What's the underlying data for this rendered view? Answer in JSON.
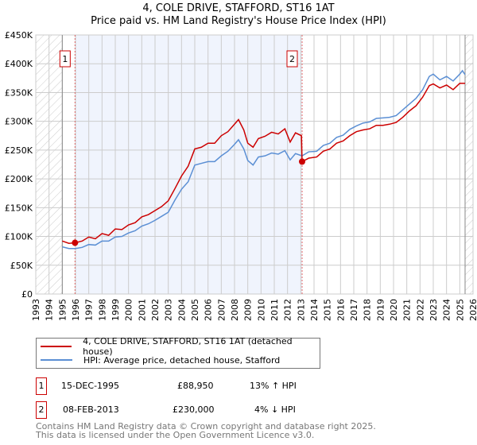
{
  "chart_data": {
    "type": "line",
    "title": "4, COLE DRIVE, STAFFORD, ST16 1AT",
    "subtitle": "Price paid vs. HM Land Registry's House Price Index (HPI)",
    "xlim": [
      1993,
      2026
    ],
    "ylim": [
      0,
      450000
    ],
    "x_ticks": [
      "1993",
      "1994",
      "1995",
      "1996",
      "1997",
      "1998",
      "1999",
      "2000",
      "2001",
      "2002",
      "2003",
      "2004",
      "2005",
      "2006",
      "2007",
      "2008",
      "2009",
      "2010",
      "2011",
      "2012",
      "2013",
      "2014",
      "2015",
      "2016",
      "2017",
      "2018",
      "2019",
      "2020",
      "2021",
      "2022",
      "2023",
      "2024",
      "2025",
      "2026"
    ],
    "y_ticks": [
      {
        "v": 0,
        "label": "£0"
      },
      {
        "v": 50000,
        "label": "£50K"
      },
      {
        "v": 100000,
        "label": "£100K"
      },
      {
        "v": 150000,
        "label": "£150K"
      },
      {
        "v": 200000,
        "label": "£200K"
      },
      {
        "v": 250000,
        "label": "£250K"
      },
      {
        "v": 300000,
        "label": "£300K"
      },
      {
        "v": 350000,
        "label": "£350K"
      },
      {
        "v": 400000,
        "label": "£400K"
      },
      {
        "v": 450000,
        "label": "£450K"
      }
    ],
    "data_start": 1995.0,
    "data_end": 2025.4,
    "series": [
      {
        "name": "4, COLE DRIVE, STAFFORD, ST16 1AT (detached house)",
        "color": "#cc0000",
        "points": [
          [
            1995.0,
            92000
          ],
          [
            1995.5,
            88000
          ],
          [
            1995.96,
            88950
          ],
          [
            1996.5,
            92000
          ],
          [
            1997.0,
            99000
          ],
          [
            1997.5,
            96000
          ],
          [
            1998.0,
            105000
          ],
          [
            1998.5,
            102000
          ],
          [
            1999.0,
            113000
          ],
          [
            1999.5,
            112000
          ],
          [
            2000.0,
            120000
          ],
          [
            2000.5,
            124000
          ],
          [
            2001.0,
            134000
          ],
          [
            2001.5,
            138000
          ],
          [
            2002.0,
            145000
          ],
          [
            2002.5,
            152000
          ],
          [
            2003.0,
            162000
          ],
          [
            2003.5,
            183000
          ],
          [
            2004.0,
            205000
          ],
          [
            2004.5,
            222000
          ],
          [
            2005.0,
            252000
          ],
          [
            2005.5,
            255000
          ],
          [
            2006.0,
            262000
          ],
          [
            2006.5,
            262000
          ],
          [
            2007.0,
            275000
          ],
          [
            2007.5,
            282000
          ],
          [
            2008.0,
            295000
          ],
          [
            2008.3,
            303000
          ],
          [
            2008.7,
            285000
          ],
          [
            2009.0,
            262000
          ],
          [
            2009.4,
            255000
          ],
          [
            2009.8,
            270000
          ],
          [
            2010.3,
            274000
          ],
          [
            2010.8,
            281000
          ],
          [
            2011.3,
            278000
          ],
          [
            2011.8,
            287000
          ],
          [
            2012.2,
            264000
          ],
          [
            2012.6,
            280000
          ],
          [
            2013.05,
            275000
          ],
          [
            2013.1,
            230000
          ],
          [
            2013.6,
            236000
          ],
          [
            2014.2,
            238000
          ],
          [
            2014.7,
            248000
          ],
          [
            2015.2,
            252000
          ],
          [
            2015.7,
            262000
          ],
          [
            2016.2,
            266000
          ],
          [
            2016.7,
            275000
          ],
          [
            2017.2,
            282000
          ],
          [
            2017.7,
            285000
          ],
          [
            2018.2,
            287000
          ],
          [
            2018.7,
            293000
          ],
          [
            2019.2,
            293000
          ],
          [
            2019.7,
            295000
          ],
          [
            2020.2,
            298000
          ],
          [
            2020.7,
            307000
          ],
          [
            2021.2,
            318000
          ],
          [
            2021.7,
            327000
          ],
          [
            2022.2,
            342000
          ],
          [
            2022.7,
            362000
          ],
          [
            2023.0,
            365000
          ],
          [
            2023.5,
            358000
          ],
          [
            2024.0,
            363000
          ],
          [
            2024.5,
            355000
          ],
          [
            2025.0,
            366000
          ],
          [
            2025.4,
            366000
          ]
        ]
      },
      {
        "name": "HPI: Average price, detached house, Stafford",
        "color": "#5b8fd4",
        "points": [
          [
            1995.0,
            82000
          ],
          [
            1995.5,
            79000
          ],
          [
            1996.0,
            79000
          ],
          [
            1996.5,
            81000
          ],
          [
            1997.0,
            86000
          ],
          [
            1997.5,
            85000
          ],
          [
            1998.0,
            92000
          ],
          [
            1998.5,
            92000
          ],
          [
            1999.0,
            99000
          ],
          [
            1999.5,
            100000
          ],
          [
            2000.0,
            106000
          ],
          [
            2000.5,
            110000
          ],
          [
            2001.0,
            118000
          ],
          [
            2001.5,
            122000
          ],
          [
            2002.0,
            128000
          ],
          [
            2002.5,
            135000
          ],
          [
            2003.0,
            142000
          ],
          [
            2003.5,
            163000
          ],
          [
            2004.0,
            182000
          ],
          [
            2004.5,
            195000
          ],
          [
            2005.0,
            224000
          ],
          [
            2005.5,
            227000
          ],
          [
            2006.0,
            230000
          ],
          [
            2006.5,
            230000
          ],
          [
            2007.0,
            240000
          ],
          [
            2007.5,
            248000
          ],
          [
            2008.0,
            260000
          ],
          [
            2008.3,
            268000
          ],
          [
            2008.7,
            252000
          ],
          [
            2009.0,
            232000
          ],
          [
            2009.4,
            224000
          ],
          [
            2009.8,
            238000
          ],
          [
            2010.3,
            240000
          ],
          [
            2010.8,
            245000
          ],
          [
            2011.3,
            243000
          ],
          [
            2011.8,
            249000
          ],
          [
            2012.2,
            233000
          ],
          [
            2012.6,
            244000
          ],
          [
            2013.1,
            240000
          ],
          [
            2013.6,
            247000
          ],
          [
            2014.2,
            248000
          ],
          [
            2014.7,
            258000
          ],
          [
            2015.2,
            262000
          ],
          [
            2015.7,
            272000
          ],
          [
            2016.2,
            276000
          ],
          [
            2016.7,
            286000
          ],
          [
            2017.2,
            292000
          ],
          [
            2017.7,
            297000
          ],
          [
            2018.2,
            299000
          ],
          [
            2018.7,
            305000
          ],
          [
            2019.2,
            306000
          ],
          [
            2019.7,
            307000
          ],
          [
            2020.2,
            310000
          ],
          [
            2020.7,
            320000
          ],
          [
            2021.2,
            330000
          ],
          [
            2021.7,
            340000
          ],
          [
            2022.2,
            355000
          ],
          [
            2022.7,
            378000
          ],
          [
            2023.0,
            382000
          ],
          [
            2023.5,
            372000
          ],
          [
            2024.0,
            378000
          ],
          [
            2024.5,
            370000
          ],
          [
            2025.0,
            382000
          ],
          [
            2025.2,
            388000
          ],
          [
            2025.4,
            381000
          ]
        ]
      }
    ],
    "sales": [
      {
        "id": "1",
        "year": 1995.96,
        "value": 88950
      },
      {
        "id": "2",
        "year": 2013.1,
        "value": 230000
      }
    ]
  },
  "table": [
    {
      "id": "1",
      "date": "15-DEC-1995",
      "price": "£88,950",
      "hpi": "13% ↑ HPI"
    },
    {
      "id": "2",
      "date": "08-FEB-2013",
      "price": "£230,000",
      "hpi": "4% ↓ HPI"
    }
  ],
  "footer": [
    "Contains HM Land Registry data © Crown copyright and database right 2025.",
    "This data is licensed under the Open Government Licence v3.0."
  ]
}
